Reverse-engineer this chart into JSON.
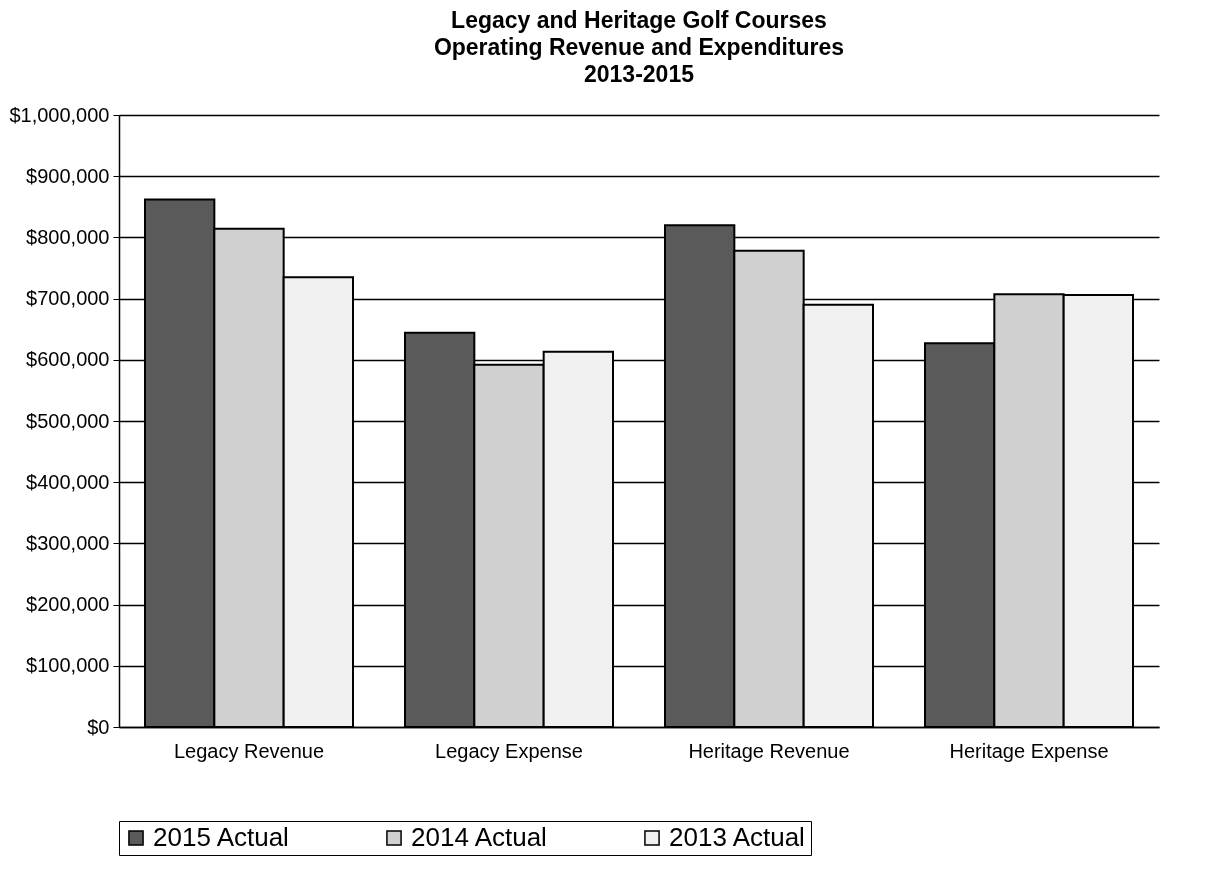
{
  "chart_data": {
    "type": "bar",
    "title": "Legacy and Heritage Golf Courses\nOperating Revenue and Expenditures\n2013-2015",
    "categories": [
      "Legacy Revenue",
      "Legacy Expense",
      "Heritage Revenue",
      "Heritage Expense"
    ],
    "series": [
      {
        "name": "2015 Actual",
        "color": "#5a5a5a",
        "values": [
          862000,
          644000,
          820000,
          627000
        ]
      },
      {
        "name": "2014 Actual",
        "color": "#d0d0d0",
        "values": [
          814000,
          592000,
          778000,
          707000
        ]
      },
      {
        "name": "2013 Actual",
        "color": "#f0f0f0",
        "values": [
          735000,
          613000,
          690000,
          706000
        ]
      }
    ],
    "ylim": [
      0,
      1000000
    ],
    "yticks": [
      {
        "value": 0,
        "label": "$0"
      },
      {
        "value": 100000,
        "label": "$100,000"
      },
      {
        "value": 200000,
        "label": "$200,000"
      },
      {
        "value": 300000,
        "label": "$300,000"
      },
      {
        "value": 400000,
        "label": "$400,000"
      },
      {
        "value": 500000,
        "label": "$500,000"
      },
      {
        "value": 600000,
        "label": "$600,000"
      },
      {
        "value": 700000,
        "label": "$700,000"
      },
      {
        "value": 800000,
        "label": "$800,000"
      },
      {
        "value": 900000,
        "label": "$900,000"
      },
      {
        "value": 1000000,
        "label": "$1,000,000"
      }
    ],
    "grid": "y",
    "legend": "bottom"
  }
}
